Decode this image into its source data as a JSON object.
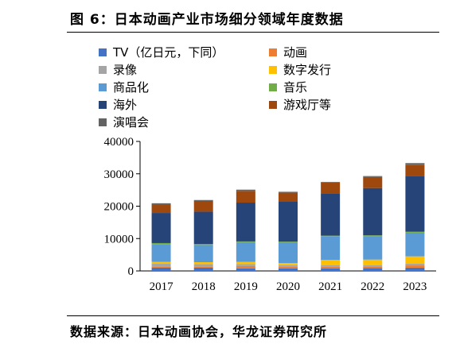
{
  "header": {
    "title": "图 6：日本动画产业市场细分领域年度数据"
  },
  "footer": {
    "source": "数据来源：日本动画协会，华龙证券研究所"
  },
  "chart_data": {
    "type": "bar",
    "stacked": true,
    "title": "",
    "xlabel": "",
    "ylabel": "",
    "categories": [
      "2017",
      "2018",
      "2019",
      "2020",
      "2021",
      "2022",
      "2023"
    ],
    "ylim": [
      0,
      40000
    ],
    "yticks": [
      0,
      10000,
      20000,
      30000,
      40000
    ],
    "legend_position": "top",
    "series": [
      {
        "name": "TV（亿日元，下同）",
        "color": "#4472C4",
        "values": [
          1000,
          1000,
          800,
          800,
          800,
          900,
          1000
        ]
      },
      {
        "name": "动画",
        "color": "#ED7D31",
        "values": [
          400,
          400,
          700,
          450,
          500,
          500,
          700
        ]
      },
      {
        "name": "录像",
        "color": "#A5A5A5",
        "values": [
          800,
          700,
          600,
          500,
          500,
          400,
          500
        ]
      },
      {
        "name": "数字发行",
        "color": "#FFC000",
        "values": [
          600,
          600,
          700,
          700,
          1600,
          1700,
          2300
        ]
      },
      {
        "name": "商品化",
        "color": "#5B9BD5",
        "values": [
          5500,
          5300,
          6100,
          6400,
          7200,
          7200,
          7300
        ]
      },
      {
        "name": "音乐",
        "color": "#70AD47",
        "values": [
          300,
          300,
          200,
          200,
          300,
          300,
          300
        ]
      },
      {
        "name": "海外",
        "color": "#264478",
        "values": [
          9300,
          10000,
          12000,
          12300,
          13100,
          14600,
          17200
        ]
      },
      {
        "name": "游戏厅等",
        "color": "#9E480E",
        "values": [
          2700,
          3300,
          3600,
          2800,
          3300,
          3400,
          3400
        ]
      },
      {
        "name": "演唱会",
        "color": "#636363",
        "values": [
          300,
          300,
          400,
          300,
          200,
          300,
          600
        ]
      }
    ]
  }
}
